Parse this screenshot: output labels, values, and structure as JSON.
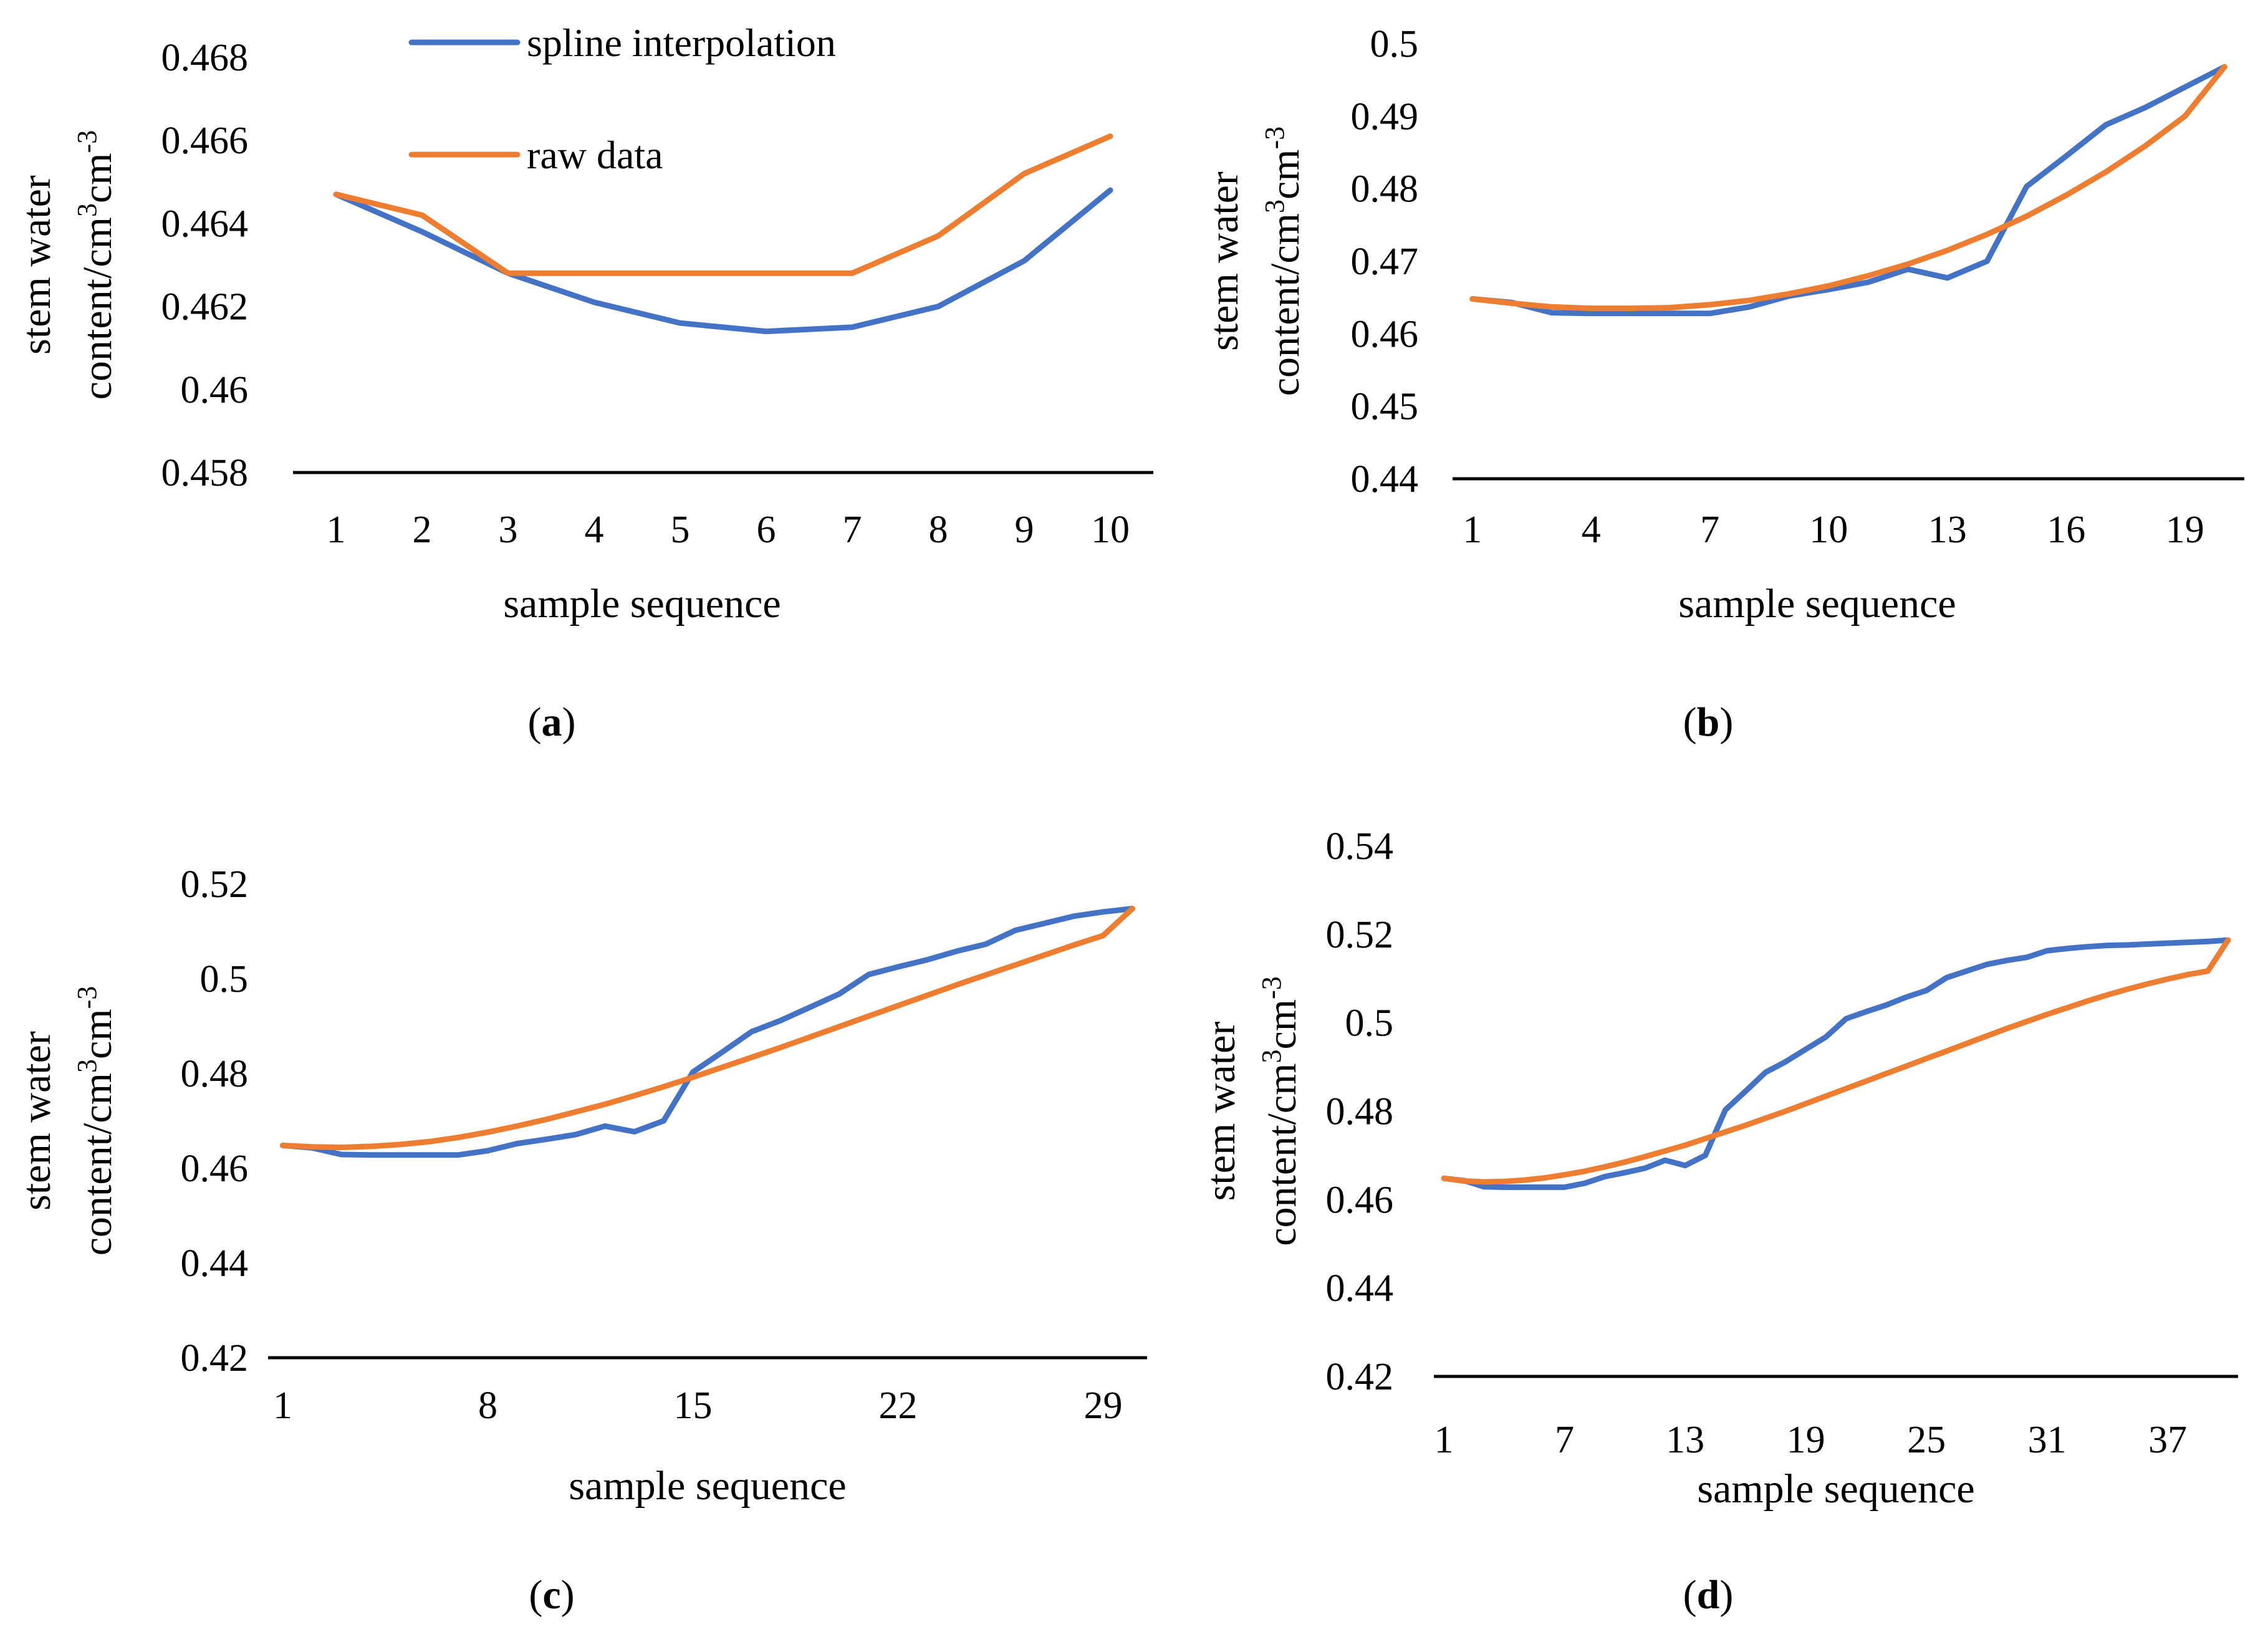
{
  "colors": {
    "spline": "#4472C4",
    "raw": "#ED7D31",
    "axis": "#000000"
  },
  "legend": {
    "items": [
      {
        "name": "spline interpolation",
        "color_key": "spline"
      },
      {
        "name": "raw data",
        "color_key": "raw"
      }
    ]
  },
  "chart_data": [
    {
      "type": "line",
      "panel_label": "a",
      "xlabel": "sample sequence",
      "ylabel_line1": "stem water",
      "ylabel_line2_prefix": "content/cm",
      "ylabel_sup1": "3",
      "ylabel_mid": "cm",
      "ylabel_sup2": "-3",
      "ylim": [
        0.458,
        0.468
      ],
      "yticks": [
        "0.458",
        "0.46",
        "0.462",
        "0.464",
        "0.466",
        "0.468"
      ],
      "xlim": [
        0.5,
        10.5
      ],
      "xticks": [
        "1",
        "2",
        "3",
        "4",
        "5",
        "6",
        "7",
        "8",
        "9",
        "10"
      ],
      "series": [
        {
          "name": "spline interpolation",
          "x": [
            1,
            2,
            3,
            4,
            5,
            6,
            7,
            8,
            9,
            10
          ],
          "values": [
            0.4647,
            0.4638,
            0.4628,
            0.4621,
            0.4616,
            0.4614,
            0.4615,
            0.462,
            0.4631,
            0.4648
          ]
        },
        {
          "name": "raw data",
          "x": [
            1,
            2,
            3,
            4,
            5,
            6,
            7,
            8,
            9,
            10
          ],
          "values": [
            0.4647,
            0.4642,
            0.4628,
            0.4628,
            0.4628,
            0.4628,
            0.4628,
            0.4637,
            0.4652,
            0.4661
          ]
        }
      ]
    },
    {
      "type": "line",
      "panel_label": "b",
      "xlabel": "sample sequence",
      "ylabel_line1": "stem water",
      "ylabel_line2_prefix": "content/cm",
      "ylabel_sup1": "3",
      "ylabel_mid": "cm",
      "ylabel_sup2": "-3",
      "ylim": [
        0.44,
        0.5
      ],
      "yticks": [
        "0.44",
        "0.45",
        "0.46",
        "0.47",
        "0.48",
        "0.49",
        "0.5"
      ],
      "xlim": [
        0.5,
        20.5
      ],
      "xticks": [
        "1",
        "4",
        "7",
        "10",
        "13",
        "16",
        "19"
      ],
      "series": [
        {
          "name": "spline interpolation",
          "x": [
            1,
            2,
            3,
            4,
            5,
            6,
            7,
            8,
            9,
            10,
            11,
            12,
            13,
            14,
            15,
            16,
            17,
            18,
            19,
            20
          ],
          "values": [
            0.4648,
            0.4643,
            0.4629,
            0.4628,
            0.4628,
            0.4628,
            0.4628,
            0.4637,
            0.4652,
            0.4661,
            0.4671,
            0.4689,
            0.4677,
            0.47,
            0.4803,
            0.4845,
            0.4888,
            0.4912,
            0.494,
            0.4968
          ]
        },
        {
          "name": "raw data",
          "x": [
            1,
            2,
            3,
            4,
            5,
            6,
            7,
            8,
            9,
            10,
            11,
            12,
            13,
            14,
            15,
            16,
            17,
            18,
            19,
            20
          ],
          "values": [
            0.4648,
            0.4642,
            0.4637,
            0.4635,
            0.4635,
            0.4636,
            0.464,
            0.4646,
            0.4655,
            0.4666,
            0.468,
            0.4696,
            0.4715,
            0.4737,
            0.4762,
            0.4791,
            0.4823,
            0.4859,
            0.49,
            0.4968
          ]
        }
      ]
    },
    {
      "type": "line",
      "panel_label": "c",
      "xlabel": "sample sequence",
      "ylabel_line1": "stem water",
      "ylabel_line2_prefix": "content/cm",
      "ylabel_sup1": "3",
      "ylabel_mid": "cm",
      "ylabel_sup2": "-3",
      "ylim": [
        0.42,
        0.52
      ],
      "yticks": [
        "0.42",
        "0.44",
        "0.46",
        "0.48",
        "0.5",
        "0.52"
      ],
      "xlim": [
        0.5,
        30.5
      ],
      "xticks": [
        "1",
        "8",
        "15",
        "22",
        "29"
      ],
      "series": [
        {
          "name": "spline interpolation",
          "x": [
            1,
            2,
            3,
            4,
            5,
            6,
            7,
            8,
            9,
            10,
            11,
            12,
            13,
            14,
            15,
            16,
            17,
            18,
            19,
            20,
            21,
            22,
            23,
            24,
            25,
            26,
            27,
            28,
            29,
            30
          ],
          "values": [
            0.4648,
            0.4643,
            0.4629,
            0.4628,
            0.4628,
            0.4628,
            0.4628,
            0.4637,
            0.4652,
            0.4661,
            0.4671,
            0.4689,
            0.4677,
            0.47,
            0.4803,
            0.4845,
            0.4888,
            0.4912,
            0.494,
            0.4968,
            0.5009,
            0.5025,
            0.504,
            0.5058,
            0.5073,
            0.5102,
            0.5117,
            0.5132,
            0.5141,
            0.5148
          ]
        },
        {
          "name": "raw data",
          "x": [
            1,
            2,
            3,
            4,
            5,
            6,
            7,
            8,
            9,
            10,
            11,
            12,
            13,
            14,
            15,
            16,
            17,
            18,
            19,
            20,
            21,
            22,
            23,
            24,
            25,
            26,
            27,
            28,
            29,
            30
          ],
          "values": [
            0.4648,
            0.4645,
            0.4644,
            0.4646,
            0.465,
            0.4656,
            0.4665,
            0.4676,
            0.4689,
            0.4703,
            0.4719,
            0.4735,
            0.4753,
            0.4772,
            0.4792,
            0.4813,
            0.4834,
            0.4855,
            0.4877,
            0.4899,
            0.4921,
            0.4943,
            0.4965,
            0.4987,
            0.5008,
            0.5029,
            0.505,
            0.5071,
            0.5091,
            0.5148
          ]
        }
      ]
    },
    {
      "type": "line",
      "panel_label": "d",
      "xlabel": "sample sequence",
      "ylabel_line1": "stem water",
      "ylabel_line2_prefix": "content/cm",
      "ylabel_sup1": "3",
      "ylabel_mid": "cm",
      "ylabel_sup2": "-3",
      "ylim": [
        0.42,
        0.54
      ],
      "yticks": [
        "0.42",
        "0.44",
        "0.46",
        "0.48",
        "0.5",
        "0.52",
        "0.54"
      ],
      "xlim": [
        0.5,
        40.5
      ],
      "xticks": [
        "1",
        "7",
        "13",
        "19",
        "25",
        "31",
        "37"
      ],
      "series": [
        {
          "name": "spline interpolation",
          "x": [
            1,
            2,
            3,
            4,
            5,
            6,
            7,
            8,
            9,
            10,
            11,
            12,
            13,
            14,
            15,
            16,
            17,
            18,
            19,
            20,
            21,
            22,
            23,
            24,
            25,
            26,
            27,
            28,
            29,
            30,
            31,
            32,
            33,
            34,
            35,
            36,
            37,
            38,
            39,
            40
          ],
          "values": [
            0.4648,
            0.4643,
            0.4629,
            0.4628,
            0.4628,
            0.4628,
            0.4628,
            0.4637,
            0.4652,
            0.4661,
            0.4671,
            0.4689,
            0.4677,
            0.47,
            0.4803,
            0.4845,
            0.4888,
            0.4912,
            0.494,
            0.4968,
            0.5009,
            0.5025,
            0.504,
            0.5058,
            0.5073,
            0.5102,
            0.5117,
            0.5132,
            0.5141,
            0.5148,
            0.5163,
            0.5168,
            0.5172,
            0.5175,
            0.5176,
            0.5178,
            0.518,
            0.5182,
            0.5184,
            0.5187
          ]
        },
        {
          "name": "raw data",
          "x": [
            1,
            2,
            3,
            4,
            5,
            6,
            7,
            8,
            9,
            10,
            11,
            12,
            13,
            14,
            15,
            16,
            17,
            18,
            19,
            20,
            21,
            22,
            23,
            24,
            25,
            26,
            27,
            28,
            29,
            30,
            31,
            32,
            33,
            34,
            35,
            36,
            37,
            38,
            39,
            40
          ],
          "values": [
            0.4648,
            0.4642,
            0.464,
            0.4641,
            0.4644,
            0.4649,
            0.4656,
            0.4664,
            0.4674,
            0.4685,
            0.4697,
            0.471,
            0.4723,
            0.4738,
            0.4753,
            0.4768,
            0.4784,
            0.48,
            0.4817,
            0.4834,
            0.4851,
            0.4868,
            0.4885,
            0.4902,
            0.4919,
            0.4936,
            0.4953,
            0.497,
            0.4987,
            0.5003,
            0.5019,
            0.5034,
            0.5049,
            0.5063,
            0.5076,
            0.5088,
            0.5099,
            0.5109,
            0.5117,
            0.5187
          ]
        }
      ]
    }
  ]
}
